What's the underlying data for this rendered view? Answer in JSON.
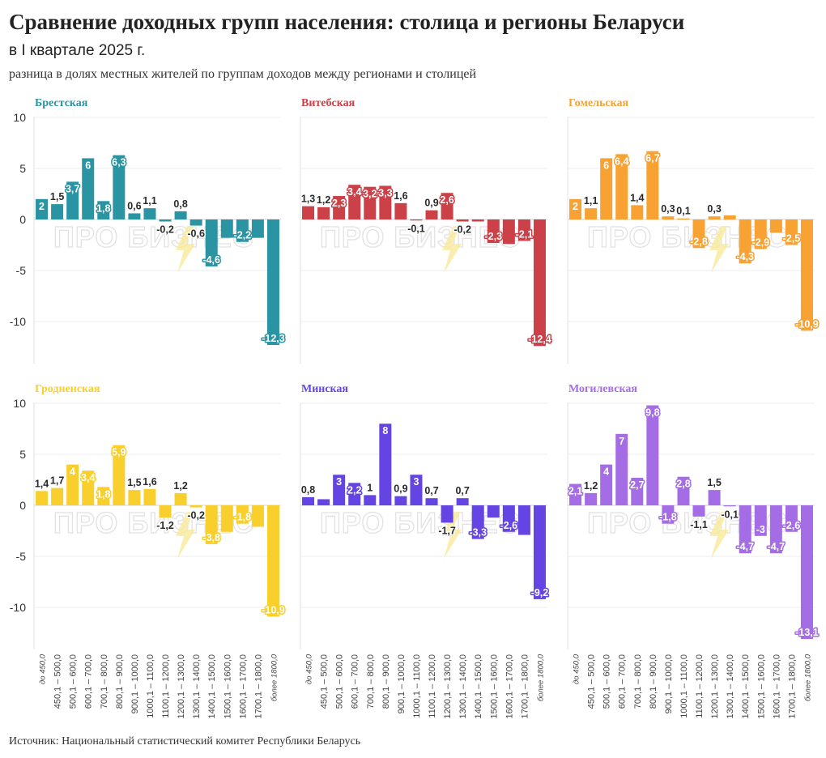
{
  "title": "Сравнение доходных групп населения: столица и регионы Беларуси",
  "subtitle": "в I квартале 2025 г.",
  "description": "разница в долях местных жителей по группам доходов между регионами и столицей",
  "source": "Источник: Национальный статистический комитет Республики Беларусь",
  "watermark": "ПРО БИЗНЕС",
  "chart_data": {
    "type": "bar",
    "layout": "small-multiples 3x2",
    "ylim": [
      -14,
      10
    ],
    "yticks": [
      10,
      5,
      0,
      -5,
      -10
    ],
    "ytick_labels": [
      "10",
      "5",
      "0",
      "-5",
      "-10"
    ],
    "grid": true,
    "categories": [
      "до 450,0",
      "450,1 – 500,0",
      "500,1 – 600,0",
      "600,1 – 700,0",
      "700,1 – 800,0",
      "800,1 – 900,0",
      "900,1 – 1000,0",
      "1000,1 – 1100,0",
      "1100,1 – 1200,0",
      "1200,1 – 1300,0",
      "1300,1 – 1400,0",
      "1400,1 – 1500,0",
      "1500,1 – 1600,0",
      "1600,1 – 1700,0",
      "1700,1 – 1800,0",
      "более 1800,0"
    ],
    "series": [
      {
        "name": "Брестская",
        "color": "#2a94a2",
        "values": [
          2,
          1.5,
          3.7,
          6,
          1.8,
          6.3,
          0.6,
          1.1,
          -0.2,
          0.8,
          -0.6,
          -4.6,
          -1.8,
          -2.2,
          -1.8,
          -12.3
        ],
        "labels": [
          "2",
          "1,5",
          "3,7",
          "6",
          "1,8",
          "6,3",
          "0,6",
          "1,1",
          "-0,2",
          "0,8",
          "-0,6",
          "-4,6",
          "",
          "-2,2",
          "",
          "-12,3"
        ]
      },
      {
        "name": "Витебская",
        "color": "#cc4047",
        "values": [
          1.3,
          1.2,
          2.3,
          3.4,
          3.2,
          3.3,
          1.6,
          -0.1,
          0.9,
          2.6,
          -0.2,
          -0.2,
          -2.3,
          -2.4,
          -2.1,
          -12.4
        ],
        "labels": [
          "1,3",
          "1,2",
          "2,3",
          "3,4",
          "3,2",
          "3,3",
          "1,6",
          "-0,1",
          "0,9",
          "2,6",
          "-0,2",
          "",
          "-2,3",
          "",
          "-2,1",
          "-12,4"
        ]
      },
      {
        "name": "Гомельская",
        "color": "#f7a233",
        "values": [
          2,
          1.1,
          6,
          6.4,
          1.4,
          6.7,
          0.3,
          0.1,
          -2.8,
          0.3,
          0.4,
          -4.3,
          -2.9,
          -1.3,
          -2.5,
          -10.9
        ],
        "labels": [
          "2",
          "1,1",
          "6",
          "6,4",
          "1,4",
          "6,7",
          "0,3",
          "0,1",
          "-2,8",
          "0,3",
          "",
          "-4,3",
          "-2,9",
          "",
          "-2,5",
          "-10,9"
        ]
      },
      {
        "name": "Гродненская",
        "color": "#f8cf2c",
        "values": [
          1.4,
          1.7,
          4,
          3.4,
          1.8,
          5.9,
          1.5,
          1.6,
          -1.2,
          1.2,
          -0.2,
          -3.8,
          -2.6,
          -1.8,
          -2.1,
          -10.9
        ],
        "labels": [
          "1,4",
          "1,7",
          "4",
          "3,4",
          "1,8",
          "5,9",
          "1,5",
          "1,6",
          "-1,2",
          "1,2",
          "-0,2",
          "-3,8",
          "",
          "-1,8",
          "",
          "-10,9"
        ]
      },
      {
        "name": "Минская",
        "color": "#6444e3",
        "values": [
          0.8,
          0.6,
          3,
          2.2,
          1,
          8,
          0.9,
          3,
          0.7,
          -1.7,
          0.7,
          -3.3,
          -1.2,
          -2.6,
          -2.9,
          -9.2
        ],
        "labels": [
          "0,8",
          "",
          "3",
          "2,2",
          "1",
          "8",
          "0,9",
          "3",
          "0,7",
          "-1,7",
          "0,7",
          "-3,3",
          "",
          "-2,6",
          "",
          "-9,2"
        ]
      },
      {
        "name": "Могилевская",
        "color": "#a56de5",
        "values": [
          2.1,
          1.2,
          4,
          7,
          2.7,
          9.8,
          -1.8,
          2.8,
          -1.1,
          1.5,
          -0.1,
          -4.7,
          -3,
          -4.7,
          -2.6,
          -13.1
        ],
        "labels": [
          "2,1",
          "1,2",
          "4",
          "7",
          "2,7",
          "9,8",
          "-1,8",
          "2,8",
          "-1,1",
          "1,5",
          "-0,1",
          "-4,7",
          "-3",
          "-4,7",
          "-2,6",
          "-13,1"
        ]
      }
    ]
  }
}
